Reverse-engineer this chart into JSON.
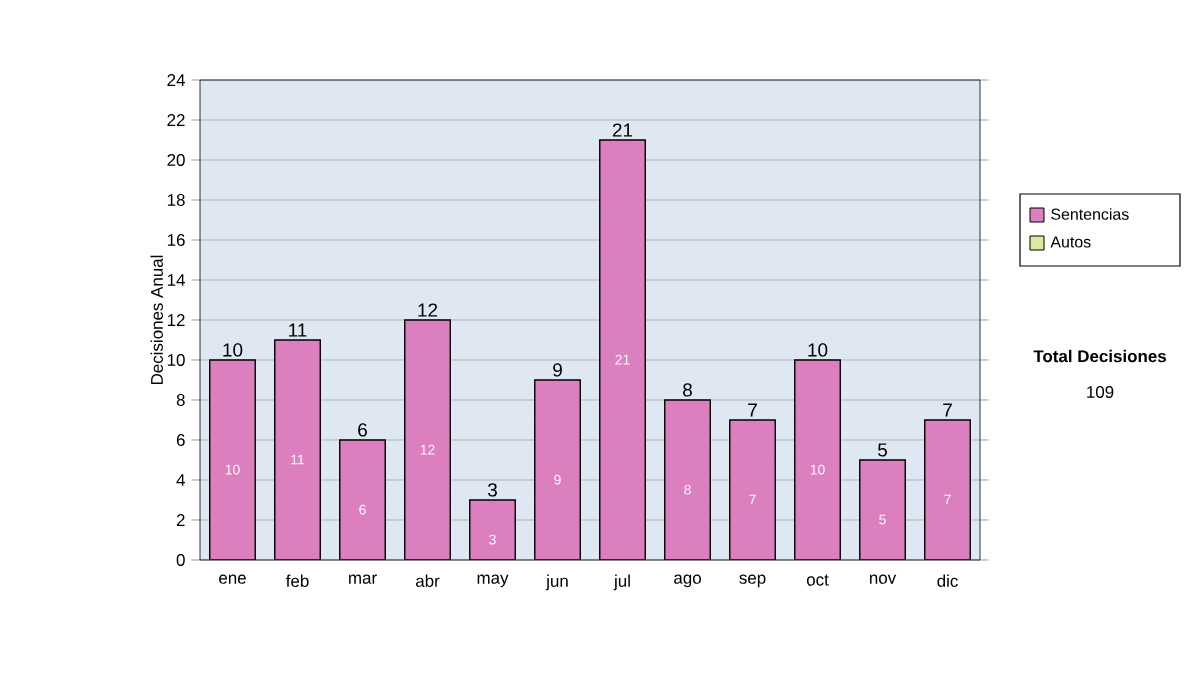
{
  "chart_data": {
    "type": "bar",
    "stacked": true,
    "ylabel": "Decisiones Anual",
    "categories": [
      "ene",
      "feb",
      "mar",
      "abr",
      "may",
      "jun",
      "jul",
      "ago",
      "sep",
      "oct",
      "nov",
      "dic"
    ],
    "series": [
      {
        "name": "Sentencias",
        "color": "#db7fbf",
        "values": [
          10,
          11,
          6,
          12,
          3,
          9,
          21,
          8,
          7,
          10,
          5,
          7
        ],
        "value_labels": [
          "10",
          "11",
          "6",
          "12",
          "3",
          "9",
          "21",
          "8",
          "7",
          "10",
          "5",
          "7"
        ]
      },
      {
        "name": "Autos",
        "color": "#d8eca0",
        "values": [
          null,
          null,
          null,
          null,
          null,
          null,
          null,
          null,
          null,
          null,
          null,
          null
        ]
      }
    ],
    "totals": [
      "10",
      "11",
      "6",
      "12",
      "3",
      "9",
      "21",
      "8",
      "7",
      "10",
      "5",
      "7"
    ],
    "ylim": [
      0,
      24
    ],
    "yticks": [
      0,
      2,
      4,
      6,
      8,
      10,
      12,
      14,
      16,
      18,
      20,
      22,
      24
    ],
    "grid": "y",
    "legend": "right",
    "annotations": [
      "Total Decisiones",
      "109"
    ]
  }
}
